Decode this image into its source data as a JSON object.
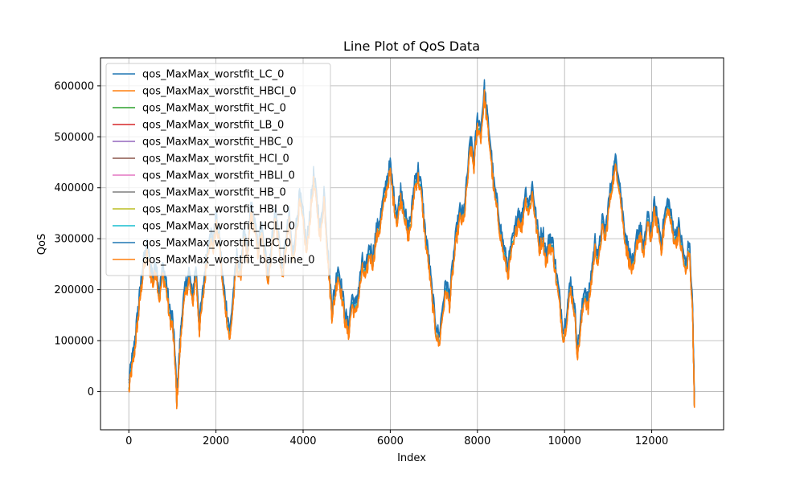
{
  "chart_data": {
    "type": "line",
    "title": "Line Plot of QoS Data",
    "xlabel": "Index",
    "ylabel": "QoS",
    "xlim": [
      -650,
      13650
    ],
    "ylim": [
      -75000,
      655000
    ],
    "xticks": [
      0,
      2000,
      4000,
      6000,
      8000,
      10000,
      12000
    ],
    "yticks": [
      0,
      100000,
      200000,
      300000,
      400000,
      500000,
      600000
    ],
    "grid": true,
    "legend_position": "top-left",
    "baseline_x": [
      0,
      60,
      120,
      180,
      220,
      280,
      340,
      420,
      500,
      560,
      620,
      700,
      780,
      860,
      940,
      1000,
      1060,
      1100,
      1160,
      1220,
      1300,
      1380,
      1460,
      1540,
      1620,
      1700,
      1780,
      1860,
      1940,
      2000,
      2080,
      2160,
      2240,
      2320,
      2400,
      2480,
      2560,
      2640,
      2720,
      2800,
      2880,
      2960,
      3040,
      3120,
      3200,
      3280,
      3360,
      3440,
      3520,
      3600,
      3680,
      3760,
      3840,
      3920,
      4000,
      4080,
      4160,
      4240,
      4320,
      4400,
      4480,
      4540,
      4600,
      4660,
      4720,
      4800,
      4880,
      4960,
      5040,
      5120,
      5200,
      5280,
      5360,
      5440,
      5520,
      5600,
      5680,
      5760,
      5840,
      5920,
      6000,
      6080,
      6160,
      6240,
      6320,
      6400,
      6480,
      6560,
      6640,
      6720,
      6800,
      6880,
      6960,
      7040,
      7120,
      7200,
      7280,
      7360,
      7440,
      7520,
      7600,
      7680,
      7760,
      7840,
      7920,
      8000,
      8080,
      8160,
      8220,
      8300,
      8380,
      8460,
      8540,
      8620,
      8700,
      8780,
      8860,
      8940,
      9020,
      9100,
      9180,
      9260,
      9340,
      9420,
      9500,
      9580,
      9660,
      9740,
      9820,
      9900,
      9980,
      10060,
      10140,
      10220,
      10300,
      10380,
      10460,
      10540,
      10620,
      10700,
      10780,
      10860,
      10940,
      11020,
      11100,
      11180,
      11260,
      11340,
      11420,
      11500,
      11580,
      11660,
      11740,
      11820,
      11900,
      11980,
      12060,
      12140,
      12220,
      12300,
      12380,
      12460,
      12540,
      12620,
      12700,
      12780,
      12860,
      12940,
      12980
    ],
    "baseline_y": [
      0,
      40000,
      70000,
      120000,
      150000,
      200000,
      240000,
      270000,
      230000,
      210000,
      240000,
      180000,
      230000,
      200000,
      140000,
      130000,
      60000,
      -20000,
      60000,
      140000,
      190000,
      220000,
      170000,
      230000,
      120000,
      180000,
      250000,
      300000,
      280000,
      330000,
      290000,
      200000,
      150000,
      100000,
      180000,
      250000,
      220000,
      300000,
      250000,
      350000,
      320000,
      270000,
      310000,
      260000,
      220000,
      280000,
      340000,
      290000,
      220000,
      280000,
      330000,
      250000,
      310000,
      370000,
      330000,
      270000,
      340000,
      410000,
      360000,
      300000,
      380000,
      300000,
      220000,
      150000,
      180000,
      230000,
      190000,
      140000,
      110000,
      170000,
      150000,
      190000,
      240000,
      220000,
      270000,
      250000,
      300000,
      320000,
      360000,
      400000,
      430000,
      370000,
      330000,
      380000,
      350000,
      300000,
      330000,
      400000,
      420000,
      380000,
      300000,
      250000,
      180000,
      120000,
      90000,
      150000,
      200000,
      170000,
      240000,
      300000,
      340000,
      330000,
      400000,
      480000,
      440000,
      520000,
      500000,
      580000,
      530000,
      470000,
      390000,
      350000,
      300000,
      260000,
      230000,
      270000,
      300000,
      340000,
      320000,
      380000,
      350000,
      390000,
      330000,
      280000,
      300000,
      250000,
      290000,
      270000,
      210000,
      160000,
      100000,
      150000,
      200000,
      160000,
      70000,
      130000,
      190000,
      160000,
      220000,
      280000,
      250000,
      320000,
      300000,
      360000,
      410000,
      440000,
      400000,
      330000,
      280000,
      250000,
      230000,
      290000,
      310000,
      260000,
      330000,
      300000,
      350000,
      320000,
      280000,
      330000,
      360000,
      320000,
      290000,
      310000,
      270000,
      230000,
      280000,
      150000,
      -30000
    ],
    "series": [
      {
        "name": "qos_MaxMax_worstfit_LC_0",
        "color": "#1f77b4",
        "offset": 15000
      },
      {
        "name": "qos_MaxMax_worstfit_HBCI_0",
        "color": "#ff7f0e",
        "offset": 0
      },
      {
        "name": "qos_MaxMax_worstfit_HC_0",
        "color": "#2ca02c",
        "offset": 4000
      },
      {
        "name": "qos_MaxMax_worstfit_LB_0",
        "color": "#d62728",
        "offset": 3000
      },
      {
        "name": "qos_MaxMax_worstfit_HBC_0",
        "color": "#9467bd",
        "offset": 2000
      },
      {
        "name": "qos_MaxMax_worstfit_HCI_0",
        "color": "#8c564b",
        "offset": 1000
      },
      {
        "name": "qos_MaxMax_worstfit_HBLI_0",
        "color": "#e377c2",
        "offset": 500
      },
      {
        "name": "qos_MaxMax_worstfit_HB_0",
        "color": "#7f7f7f",
        "offset": 2500
      },
      {
        "name": "qos_MaxMax_worstfit_HBI_0",
        "color": "#bcbd22",
        "offset": 1500
      },
      {
        "name": "qos_MaxMax_worstfit_HCLI_0",
        "color": "#17becf",
        "offset": 3500
      },
      {
        "name": "qos_MaxMax_worstfit_LBC_0",
        "color": "#1f77b4",
        "offset": 20000
      },
      {
        "name": "qos_MaxMax_worstfit_baseline_0",
        "color": "#ff7f0e",
        "offset": -2000
      }
    ]
  }
}
